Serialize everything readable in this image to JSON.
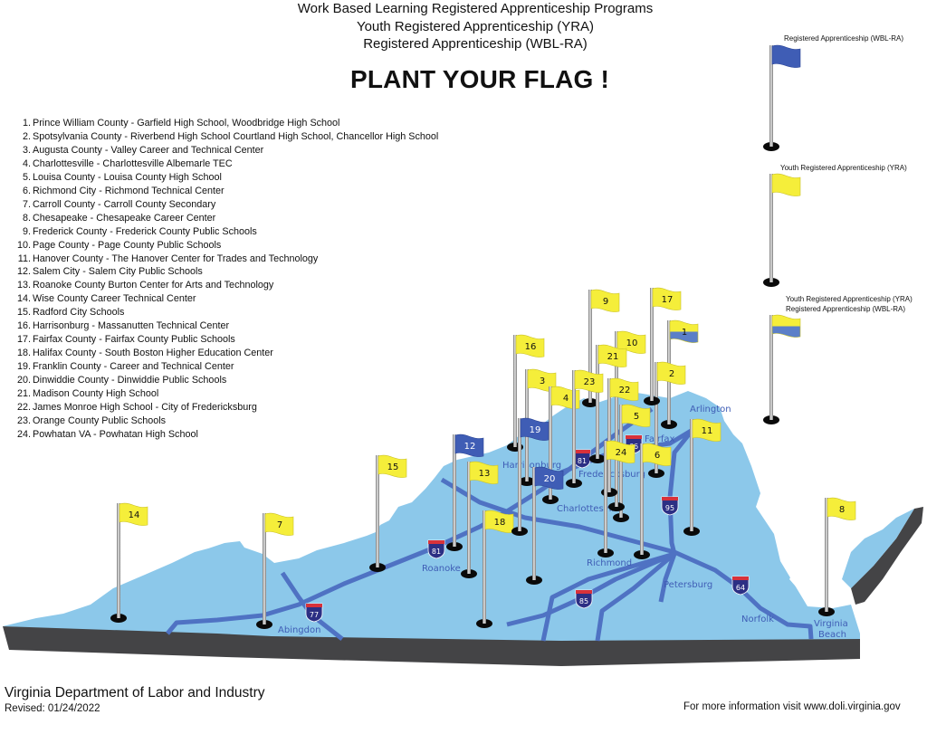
{
  "header": {
    "title_lines": [
      "Work Based Learning Registered Apprenticeship Programs",
      "Youth Registered Apprenticeship (YRA)",
      "Registered Apprenticeship (WBL-RA)"
    ],
    "headline": "PLANT YOUR FLAG !"
  },
  "programs": [
    {
      "num": "1.",
      "text": "Prince William County - Garfield High School, Woodbridge High School"
    },
    {
      "num": "2.",
      "text": "Spotsylvania County - Riverbend High School Courtland High School, Chancellor High School"
    },
    {
      "num": "3.",
      "text": "Augusta County - Valley Career and Technical Center"
    },
    {
      "num": "4.",
      "text": "Charlottesville - Charlottesville Albemarle TEC"
    },
    {
      "num": "5.",
      "text": "Louisa County - Louisa County High School"
    },
    {
      "num": "6.",
      "text": "Richmond City - Richmond Technical Center"
    },
    {
      "num": "7.",
      "text": "Carroll County - Carroll County Secondary"
    },
    {
      "num": "8.",
      "text": "Chesapeake - Chesapeake Career Center"
    },
    {
      "num": "9.",
      "text": "Frederick County - Frederick County Public Schools"
    },
    {
      "num": "10.",
      "text": "Page County - Page County Public Schools"
    },
    {
      "num": "11.",
      "text": "Hanover County - The Hanover Center for Trades and Technology"
    },
    {
      "num": "12.",
      "text": "Salem City - Salem City Public Schools"
    },
    {
      "num": "13.",
      "text": "Roanoke County Burton Center for Arts and Technology"
    },
    {
      "num": "14.",
      "text": "Wise County Career Technical Center"
    },
    {
      "num": "15.",
      "text": "Radford City Schools"
    },
    {
      "num": "16.",
      "text": "Harrisonburg - Massanutten Technical Center"
    },
    {
      "num": "17.",
      "text": "Fairfax County - Fairfax County Public Schools"
    },
    {
      "num": "18.",
      "text": "Halifax County - South Boston Higher Education Center"
    },
    {
      "num": "19.",
      "text": "Franklin County - Career and Technical Center"
    },
    {
      "num": "20.",
      "text": "Dinwiddie County - Dinwiddie Public Schools"
    },
    {
      "num": "21.",
      "text": "Madison County High School"
    },
    {
      "num": "22.",
      "text": "James Monroe High School - City of Fredericksburg"
    },
    {
      "num": "23.",
      "text": "Orange County Public Schools"
    },
    {
      "num": "24.",
      "text": "Powhatan VA - Powhatan High School"
    }
  ],
  "legend": {
    "wbl_ra": "Registered Apprenticeship (WBL-RA)",
    "yra": "Youth Registered Apprenticeship (YRA)",
    "both_line1": "Youth Registered Apprenticeship (YRA)",
    "both_line2": "Registered Apprenticeship (WBL-RA)"
  },
  "colors": {
    "yra_flag": "#f5ee3a",
    "wbl_ra_flag": "#3f5db5",
    "land": "#8cc8ea",
    "land_edge": "#444446",
    "roads": "#4f72c3",
    "city_labels": "#3f5db5"
  },
  "flags": [
    {
      "label": "1",
      "program": "both"
    },
    {
      "label": "2",
      "program": "YRA"
    },
    {
      "label": "3",
      "program": "YRA"
    },
    {
      "label": "4",
      "program": "YRA"
    },
    {
      "label": "5",
      "program": "YRA"
    },
    {
      "label": "6",
      "program": "YRA"
    },
    {
      "label": "7",
      "program": "YRA"
    },
    {
      "label": "8",
      "program": "YRA"
    },
    {
      "label": "9",
      "program": "YRA"
    },
    {
      "label": "10",
      "program": "YRA"
    },
    {
      "label": "11",
      "program": "YRA"
    },
    {
      "label": "12",
      "program": "WBL-RA"
    },
    {
      "label": "13",
      "program": "YRA"
    },
    {
      "label": "14",
      "program": "YRA"
    },
    {
      "label": "15",
      "program": "YRA"
    },
    {
      "label": "16",
      "program": "YRA"
    },
    {
      "label": "17",
      "program": "YRA"
    },
    {
      "label": "18",
      "program": "YRA"
    },
    {
      "label": "19",
      "program": "WBL-RA"
    },
    {
      "label": "20",
      "program": "WBL-RA"
    },
    {
      "label": "21",
      "program": "YRA"
    },
    {
      "label": "22",
      "program": "YRA"
    },
    {
      "label": "23",
      "program": "YRA"
    },
    {
      "label": "24",
      "program": "YRA"
    }
  ],
  "cities": {
    "arlington": "Arlington",
    "fairfax": "Fairfax",
    "harrisonburg": "Harrisonburg",
    "fredericksburg": "Fredericksburg",
    "charlottesville": "Charlottesville",
    "roanoke": "Roanoke",
    "richmond": "Richmond",
    "petersburg": "Petersburg",
    "abingdon": "Abingdon",
    "norfolk": "Norfolk",
    "virginia_beach_1": "Virginia",
    "virginia_beach_2": "Beach"
  },
  "interstates": {
    "i81_a": "81",
    "i81_b": "81",
    "i66": "66",
    "i95": "95",
    "i77": "77",
    "i85": "85",
    "i64": "64"
  },
  "footer": {
    "org": "Virginia Department of Labor and Industry",
    "revised": "Revised: 01/24/2022",
    "info": "For more information visit www.doli.virginia.gov"
  }
}
